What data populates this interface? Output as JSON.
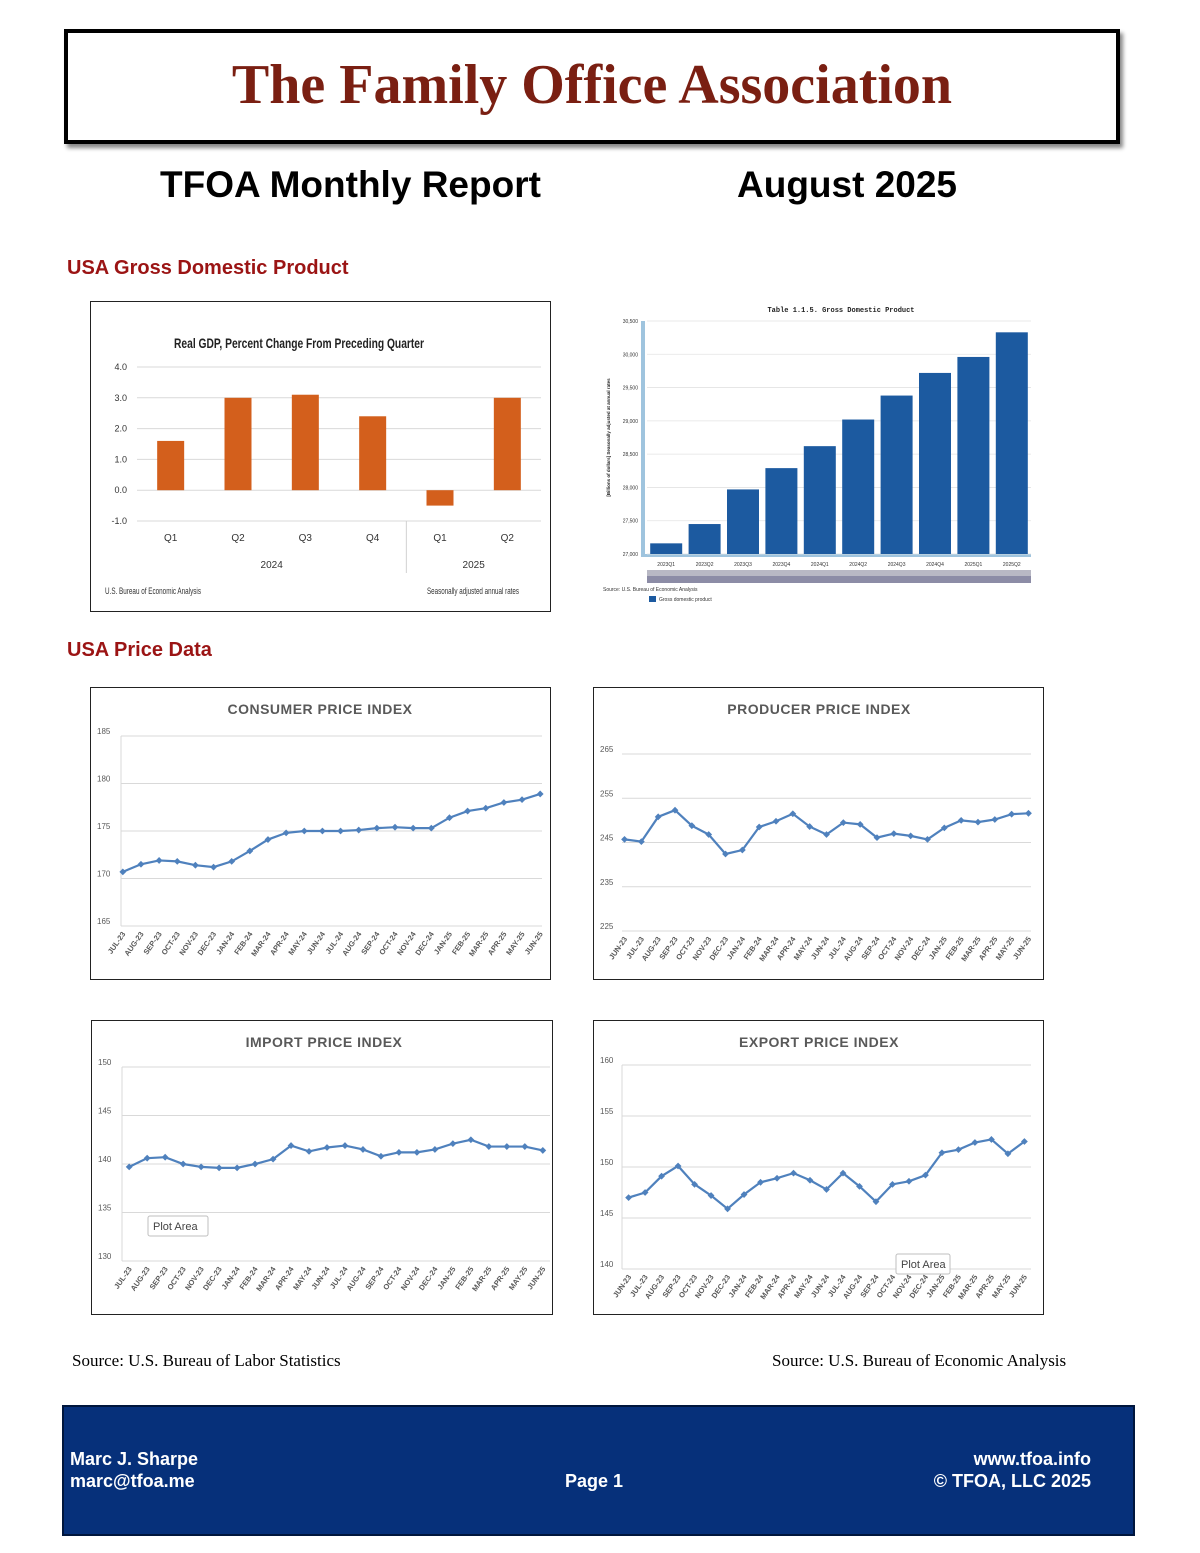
{
  "header": {
    "org_name": "The Family Office Association",
    "report_title": "TFOA Monthly Report",
    "report_date": "August 2025"
  },
  "sections": {
    "gdp_heading": "USA Gross Domestic Product",
    "price_heading": "USA Price Data"
  },
  "chart_data": [
    {
      "type": "bar",
      "title": "Real GDP, Percent Change From Preceding Quarter",
      "categories": [
        "Q1",
        "Q2",
        "Q3",
        "Q4",
        "Q1",
        "Q2"
      ],
      "groups": [
        "2024",
        "2025"
      ],
      "values": [
        1.6,
        3.0,
        3.1,
        2.4,
        -0.5,
        3.0
      ],
      "ylim": [
        -1.0,
        4.0
      ],
      "yticks": [
        "4.0",
        "3.0",
        "2.0",
        "1.0",
        "0.0",
        "-1.0"
      ],
      "source_note": "U.S. Bureau of Economic Analysis",
      "rate_note": "Seasonally adjusted annual rates",
      "color": "#d35f1c"
    },
    {
      "type": "bar",
      "title": "Table 1.1.5. Gross Domestic Product",
      "categories": [
        "2023Q1",
        "2023Q2",
        "2023Q3",
        "2023Q4",
        "2024Q1",
        "2024Q2",
        "2024Q3",
        "2024Q4",
        "2025Q1",
        "2025Q2"
      ],
      "values": [
        27160,
        27450,
        27970,
        28290,
        28620,
        29020,
        29380,
        29720,
        29960,
        30330
      ],
      "ylim": [
        27000,
        30500
      ],
      "yticks": [
        "30,500",
        "30,000",
        "29,500",
        "29,000",
        "28,500",
        "28,000",
        "27,500",
        "27,000"
      ],
      "ylabel": "[Billions of dollars] Seasonally adjusted at annual rates",
      "source_note": "Source: U.S. Bureau of Economic Analysis",
      "legend": "Gross domestic product",
      "color": "#1c5aa0"
    },
    {
      "type": "line",
      "title": "CONSUMER PRICE INDEX",
      "x": [
        "JUL-23",
        "AUG-23",
        "SEP-23",
        "OCT-23",
        "NOV-23",
        "DEC-23",
        "JAN-24",
        "FEB-24",
        "MAR-24",
        "APR-24",
        "MAY-24",
        "JUN-24",
        "JUL-24",
        "AUG-24",
        "SEP-24",
        "OCT-24",
        "NOV-24",
        "DEC-24",
        "JAN-25",
        "FEB-25",
        "MAR-25",
        "APR-25",
        "MAY-25",
        "JUN-25"
      ],
      "values": [
        170.7,
        171.5,
        171.9,
        171.8,
        171.4,
        171.2,
        171.8,
        172.9,
        174.1,
        174.8,
        175.0,
        175.0,
        175.0,
        175.1,
        175.3,
        175.4,
        175.3,
        175.3,
        176.4,
        177.1,
        177.4,
        178.0,
        178.3,
        178.9
      ],
      "ylim": [
        165,
        185
      ],
      "yticks": [
        "185",
        "180",
        "175",
        "170",
        "165"
      ]
    },
    {
      "type": "line",
      "title": "PRODUCER PRICE INDEX",
      "x": [
        "JUN-23",
        "JUL-23",
        "AUG-23",
        "SEP-23",
        "OCT-23",
        "NOV-23",
        "DEC-23",
        "JAN-24",
        "FEB-24",
        "MAR-24",
        "APR-24",
        "MAY-24",
        "JUN-24",
        "JUL-24",
        "AUG-24",
        "SEP-24",
        "OCT-24",
        "NOV-24",
        "DEC-24",
        "JAN-25",
        "FEB-25",
        "MAR-25",
        "APR-25",
        "MAY-25",
        "JUN-25"
      ],
      "values": [
        245.7,
        245.2,
        250.8,
        252.3,
        248.8,
        246.8,
        242.4,
        243.3,
        248.5,
        249.8,
        251.5,
        248.6,
        246.8,
        249.5,
        249.1,
        246.1,
        247.0,
        246.5,
        245.7,
        248.3,
        250.0,
        249.6,
        250.2,
        251.4,
        251.6
      ],
      "ylim": [
        225,
        265
      ],
      "yticks": [
        "265",
        "255",
        "245",
        "235",
        "225"
      ]
    },
    {
      "type": "line",
      "title": "IMPORT PRICE INDEX",
      "x": [
        "JUL-23",
        "AUG-23",
        "SEP-23",
        "OCT-23",
        "NOV-23",
        "DEC-23",
        "JAN-24",
        "FEB-24",
        "MAR-24",
        "APR-24",
        "MAY-24",
        "JUN-24",
        "JUL-24",
        "AUG-24",
        "SEP-24",
        "OCT-24",
        "NOV-24",
        "DEC-24",
        "JAN-25",
        "FEB-25",
        "MAR-25",
        "APR-25",
        "MAY-25",
        "JUN-25"
      ],
      "values": [
        139.7,
        140.6,
        140.7,
        140.0,
        139.7,
        139.6,
        139.6,
        140.0,
        140.5,
        141.9,
        141.3,
        141.7,
        141.9,
        141.5,
        140.8,
        141.2,
        141.2,
        141.5,
        142.1,
        142.5,
        141.8,
        141.8,
        141.8,
        141.4
      ],
      "ylim": [
        130,
        150
      ],
      "yticks": [
        "150",
        "145",
        "140",
        "135",
        "130"
      ],
      "annotation": "Plot Area"
    },
    {
      "type": "line",
      "title": "EXPORT PRICE INDEX",
      "x": [
        "JUN-23",
        "JUL-23",
        "AUG-23",
        "SEP-23",
        "OCT-23",
        "NOV-23",
        "DEC-23",
        "JAN-24",
        "FEB-24",
        "MAR-24",
        "APR-24",
        "MAY-24",
        "JUN-24",
        "JUL-24",
        "AUG-24",
        "SEP-24",
        "OCT-24",
        "NOV-24",
        "DEC-24",
        "JAN-25",
        "FEB-25",
        "MAR-25",
        "APR-25",
        "MAY-25",
        "JUN-25"
      ],
      "values": [
        147.0,
        147.5,
        149.1,
        150.1,
        148.3,
        147.2,
        145.9,
        147.3,
        148.5,
        148.9,
        149.4,
        148.7,
        147.8,
        149.4,
        148.1,
        146.6,
        148.3,
        148.6,
        149.2,
        151.4,
        151.7,
        152.4,
        152.7,
        151.3,
        152.5
      ],
      "ylim": [
        140,
        160
      ],
      "yticks": [
        "160",
        "155",
        "150",
        "145",
        "140"
      ],
      "annotation": "Plot Area"
    }
  ],
  "sources": {
    "left": "Source: U.S. Bureau of Labor Statistics",
    "right": "Source: U.S. Bureau of Economic Analysis"
  },
  "footer": {
    "name": "Marc J. Sharpe",
    "email": "marc@tfoa.me",
    "page": "Page 1",
    "website": "www.tfoa.info",
    "copyright": "© TFOA, LLC 2025"
  }
}
